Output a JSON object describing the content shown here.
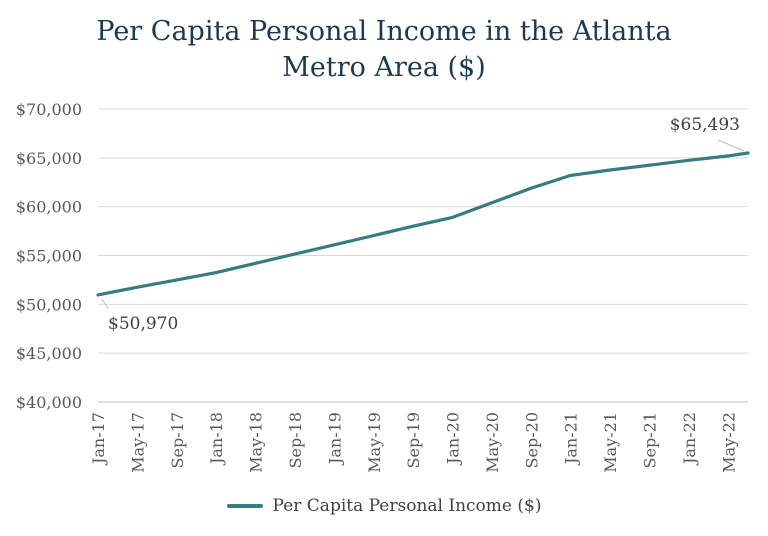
{
  "chart_data": {
    "type": "line",
    "title_lines": [
      "Per Capita Personal Income in the Atlanta",
      "Metro Area ($)"
    ],
    "x_tick_labels": [
      "Jan-17",
      "May-17",
      "Sep-17",
      "Jan-18",
      "May-18",
      "Sep-18",
      "Jan-19",
      "May-19",
      "Sep-19",
      "Jan-20",
      "May-20",
      "Sep-20",
      "Jan-21",
      "May-21",
      "Sep-21",
      "Jan-22",
      "May-22"
    ],
    "y_tick_labels": [
      "$40,000",
      "$45,000",
      "$50,000",
      "$55,000",
      "$60,000",
      "$65,000",
      "$70,000"
    ],
    "ylim": [
      40000,
      70000
    ],
    "y_step": 5000,
    "grid": true,
    "legend_position": "bottom",
    "series": [
      {
        "name": "Per Capita Personal Income ($)",
        "color": "#367c80",
        "x": [
          "Jan-17",
          "May-17",
          "Sep-17",
          "Jan-18",
          "May-18",
          "Sep-18",
          "Jan-19",
          "May-19",
          "Sep-19",
          "Jan-20",
          "May-20",
          "Sep-20",
          "Jan-21",
          "May-21",
          "Sep-21",
          "Jan-22",
          "May-22",
          "Jul-22"
        ],
        "values": [
          50970,
          51750,
          52500,
          53250,
          54200,
          55150,
          56100,
          57050,
          58000,
          58900,
          60400,
          61900,
          63200,
          63750,
          64250,
          64750,
          65200,
          65493
        ]
      }
    ],
    "annotations": [
      {
        "text": "$50,970",
        "series": 0,
        "point": 0
      },
      {
        "text": "$65,493",
        "series": 0,
        "point": 17
      }
    ]
  }
}
